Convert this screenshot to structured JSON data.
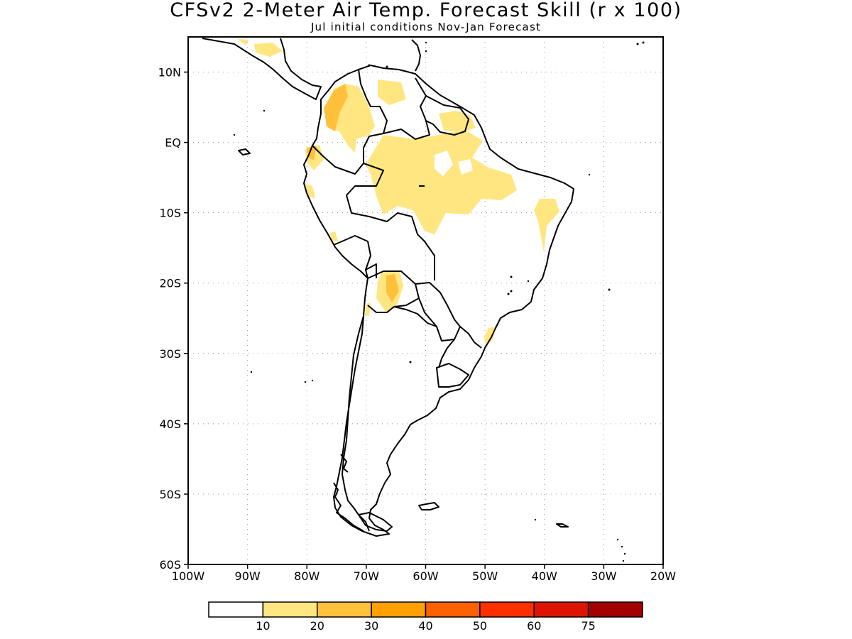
{
  "title": "CFSv2 2-Meter Air Temp. Forecast Skill (r x 100)",
  "subtitle": "Jul initial conditions  Nov-Jan Forecast",
  "map": {
    "region": "South America",
    "lon_range": [
      -100,
      -20
    ],
    "lat_range": [
      -60,
      15
    ],
    "grid": "dotted",
    "x_ticks": [
      {
        "lon": -100,
        "label": "100W"
      },
      {
        "lon": -90,
        "label": "90W"
      },
      {
        "lon": -80,
        "label": "80W"
      },
      {
        "lon": -70,
        "label": "70W"
      },
      {
        "lon": -60,
        "label": "60W"
      },
      {
        "lon": -50,
        "label": "50W"
      },
      {
        "lon": -40,
        "label": "40W"
      },
      {
        "lon": -30,
        "label": "30W"
      },
      {
        "lon": -20,
        "label": "20W"
      }
    ],
    "y_ticks": [
      {
        "lat": 10,
        "label": "10N"
      },
      {
        "lat": 0,
        "label": "EQ"
      },
      {
        "lat": -10,
        "label": "10S"
      },
      {
        "lat": -20,
        "label": "20S"
      },
      {
        "lat": -30,
        "label": "30S"
      },
      {
        "lat": -40,
        "label": "40S"
      },
      {
        "lat": -50,
        "label": "50S"
      },
      {
        "lat": -60,
        "label": "60S"
      }
    ]
  },
  "colorbar": {
    "colors": [
      "#ffffff",
      "#ffe680",
      "#ffc03c",
      "#ffa000",
      "#ff6000",
      "#ff3000",
      "#dd1500",
      "#a50000"
    ],
    "labels": [
      "10",
      "20",
      "30",
      "40",
      "50",
      "60",
      "75"
    ]
  },
  "colors": {
    "skill_10_20": "#ffe680",
    "skill_20_30": "#ffc03c",
    "coastline": "#000000"
  }
}
